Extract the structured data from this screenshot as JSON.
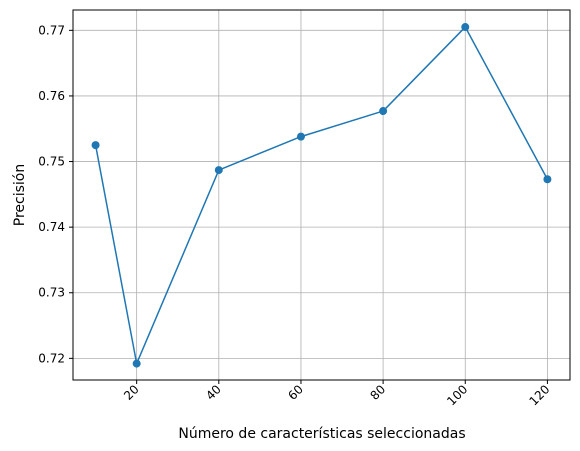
{
  "chart_data": {
    "type": "line",
    "title": "",
    "xlabel": "Número de características seleccionadas",
    "ylabel": "Precisión",
    "x": [
      10,
      20,
      40,
      60,
      80,
      100,
      120
    ],
    "series": [
      {
        "values": [
          0.7525,
          0.7192,
          0.7487,
          0.7538,
          0.7577,
          0.7705,
          0.7473
        ]
      }
    ],
    "x_ticks": [
      20,
      40,
      60,
      80,
      100,
      120
    ],
    "x_tick_labels": [
      "20",
      "40",
      "60",
      "80",
      "100",
      "120"
    ],
    "y_ticks": [
      0.72,
      0.73,
      0.74,
      0.75,
      0.76,
      0.77
    ],
    "y_tick_labels": [
      "0.72",
      "0.73",
      "0.74",
      "0.75",
      "0.76",
      "0.77"
    ],
    "xlim": [
      4.5,
      125.5
    ],
    "ylim": [
      0.7167,
      0.7731
    ],
    "grid": true,
    "line_color": "#1f77b4",
    "marker": "circle"
  }
}
